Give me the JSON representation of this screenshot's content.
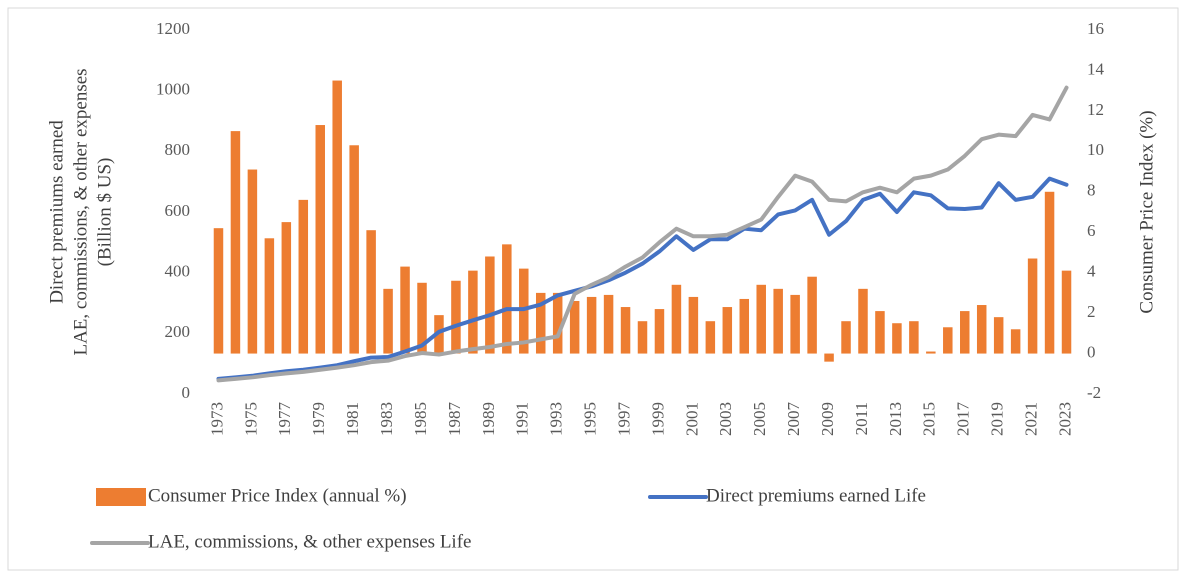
{
  "chart_data": {
    "type": "bar",
    "ylabel": [
      "Direct premiums earned",
      "LAE, commissions, & other expenses",
      "(Billion $ US)"
    ],
    "y2label": "Consumer Price Index (%)",
    "categories": [
      "1973",
      null,
      "1975",
      null,
      "1977",
      null,
      "1979",
      null,
      "1981",
      null,
      "1983",
      null,
      "1985",
      null,
      "1987",
      null,
      "1989",
      null,
      "1991",
      null,
      "1993",
      null,
      "1995",
      null,
      "1997",
      null,
      "1999",
      null,
      "2001",
      null,
      "2003",
      null,
      "2005",
      null,
      "2007",
      null,
      "2009",
      null,
      "2011",
      null,
      "2013",
      null,
      "2015",
      null,
      "2017",
      null,
      "2019",
      null,
      "2021",
      null,
      "2023"
    ],
    "ylim": [
      0,
      1200
    ],
    "yticks": [
      0,
      200,
      400,
      600,
      800,
      1000,
      1200
    ],
    "y2lim": [
      -2,
      16
    ],
    "y2ticks": [
      -2,
      0,
      2,
      4,
      6,
      8,
      10,
      12,
      14,
      16
    ],
    "legend": "bottom",
    "series": [
      {
        "name": "Consumer Price Index (annual %)",
        "type": "bar",
        "axis": "y2",
        "color": "#ed7d31",
        "values": [
          6.2,
          11.0,
          9.1,
          5.7,
          6.5,
          7.6,
          11.3,
          13.5,
          10.3,
          6.1,
          3.2,
          4.3,
          3.5,
          1.9,
          3.6,
          4.1,
          4.8,
          5.4,
          4.2,
          3.0,
          3.0,
          2.6,
          2.8,
          2.9,
          2.3,
          1.6,
          2.2,
          3.4,
          2.8,
          1.6,
          2.3,
          2.7,
          3.4,
          3.2,
          2.9,
          3.8,
          -0.4,
          1.6,
          3.2,
          2.1,
          1.5,
          1.6,
          0.1,
          1.3,
          2.1,
          2.4,
          1.8,
          1.2,
          4.7,
          8.0,
          4.1
        ]
      },
      {
        "name": "Direct premiums earned Life",
        "type": "line",
        "color": "#4472c4",
        "values": [
          50,
          55,
          60,
          68,
          75,
          80,
          87,
          95,
          108,
          120,
          122,
          140,
          160,
          205,
          225,
          243,
          260,
          280,
          280,
          295,
          325,
          340,
          355,
          375,
          400,
          430,
          470,
          520,
          475,
          510,
          510,
          545,
          540,
          592,
          605,
          640,
          525,
          570,
          640,
          660,
          600,
          665,
          655,
          612,
          610,
          615,
          695,
          640,
          650,
          710,
          690
        ]
      },
      {
        "name": "LAE, commissions, & other expenses Life",
        "type": "line",
        "color": "#a5a5a5",
        "values": [
          45,
          50,
          55,
          62,
          68,
          73,
          80,
          87,
          95,
          105,
          110,
          125,
          135,
          130,
          140,
          148,
          155,
          165,
          170,
          180,
          190,
          330,
          360,
          385,
          420,
          450,
          500,
          545,
          520,
          520,
          525,
          550,
          575,
          650,
          720,
          700,
          640,
          635,
          665,
          680,
          665,
          710,
          720,
          740,
          785,
          840,
          855,
          850,
          920,
          905,
          1010
        ]
      }
    ]
  }
}
